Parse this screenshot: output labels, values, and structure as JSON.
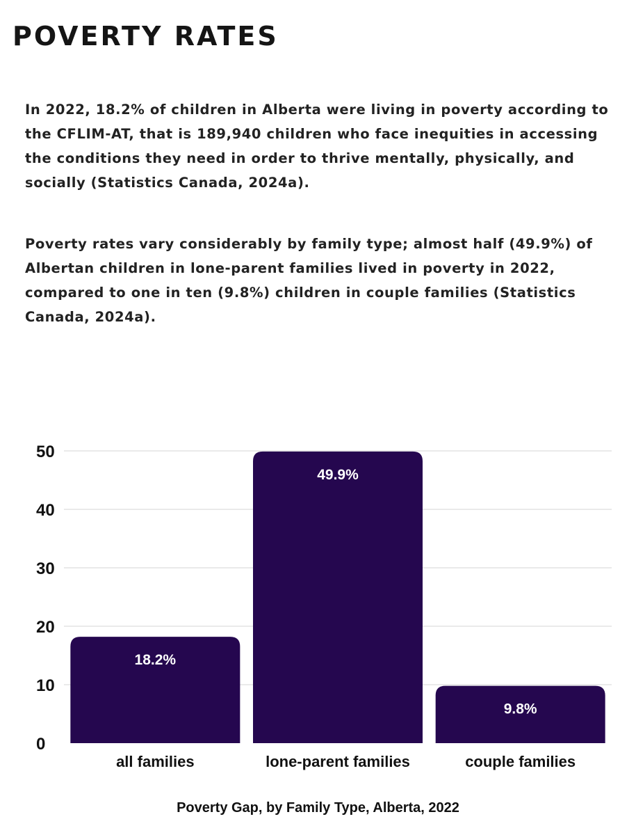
{
  "title": "POVERTY RATES",
  "paragraphs": [
    "In 2022, 18.2% of children in Alberta were living in poverty according to the CFLIM-AT, that is 189,940 children who face inequities in accessing the conditions they need in order to thrive mentally, physically, and socially (Statistics Canada, 2024a).",
    "Poverty rates vary considerably by family type; almost half (49.9%) of Albertan children in lone-parent families lived in poverty in 2022, compared to one in ten (9.8%) children in couple families (Statistics Canada, 2024a)."
  ],
  "colors": {
    "bar": "#25074f",
    "grid": "#e3e3e3",
    "label": "#ffffff"
  },
  "chart_data": {
    "type": "bar",
    "title": "Poverty Gap, by Family Type, Alberta, 2022",
    "categories": [
      "all families",
      "lone-parent families",
      "couple families"
    ],
    "values": [
      18.2,
      49.9,
      9.8
    ],
    "data_labels": [
      "18.2%",
      "49.9%",
      "9.8%"
    ],
    "yticks": [
      0,
      10,
      20,
      30,
      40,
      50
    ],
    "ylim": [
      0,
      50
    ],
    "xlabel": "",
    "ylabel": "",
    "grid": true,
    "legend": "none"
  }
}
